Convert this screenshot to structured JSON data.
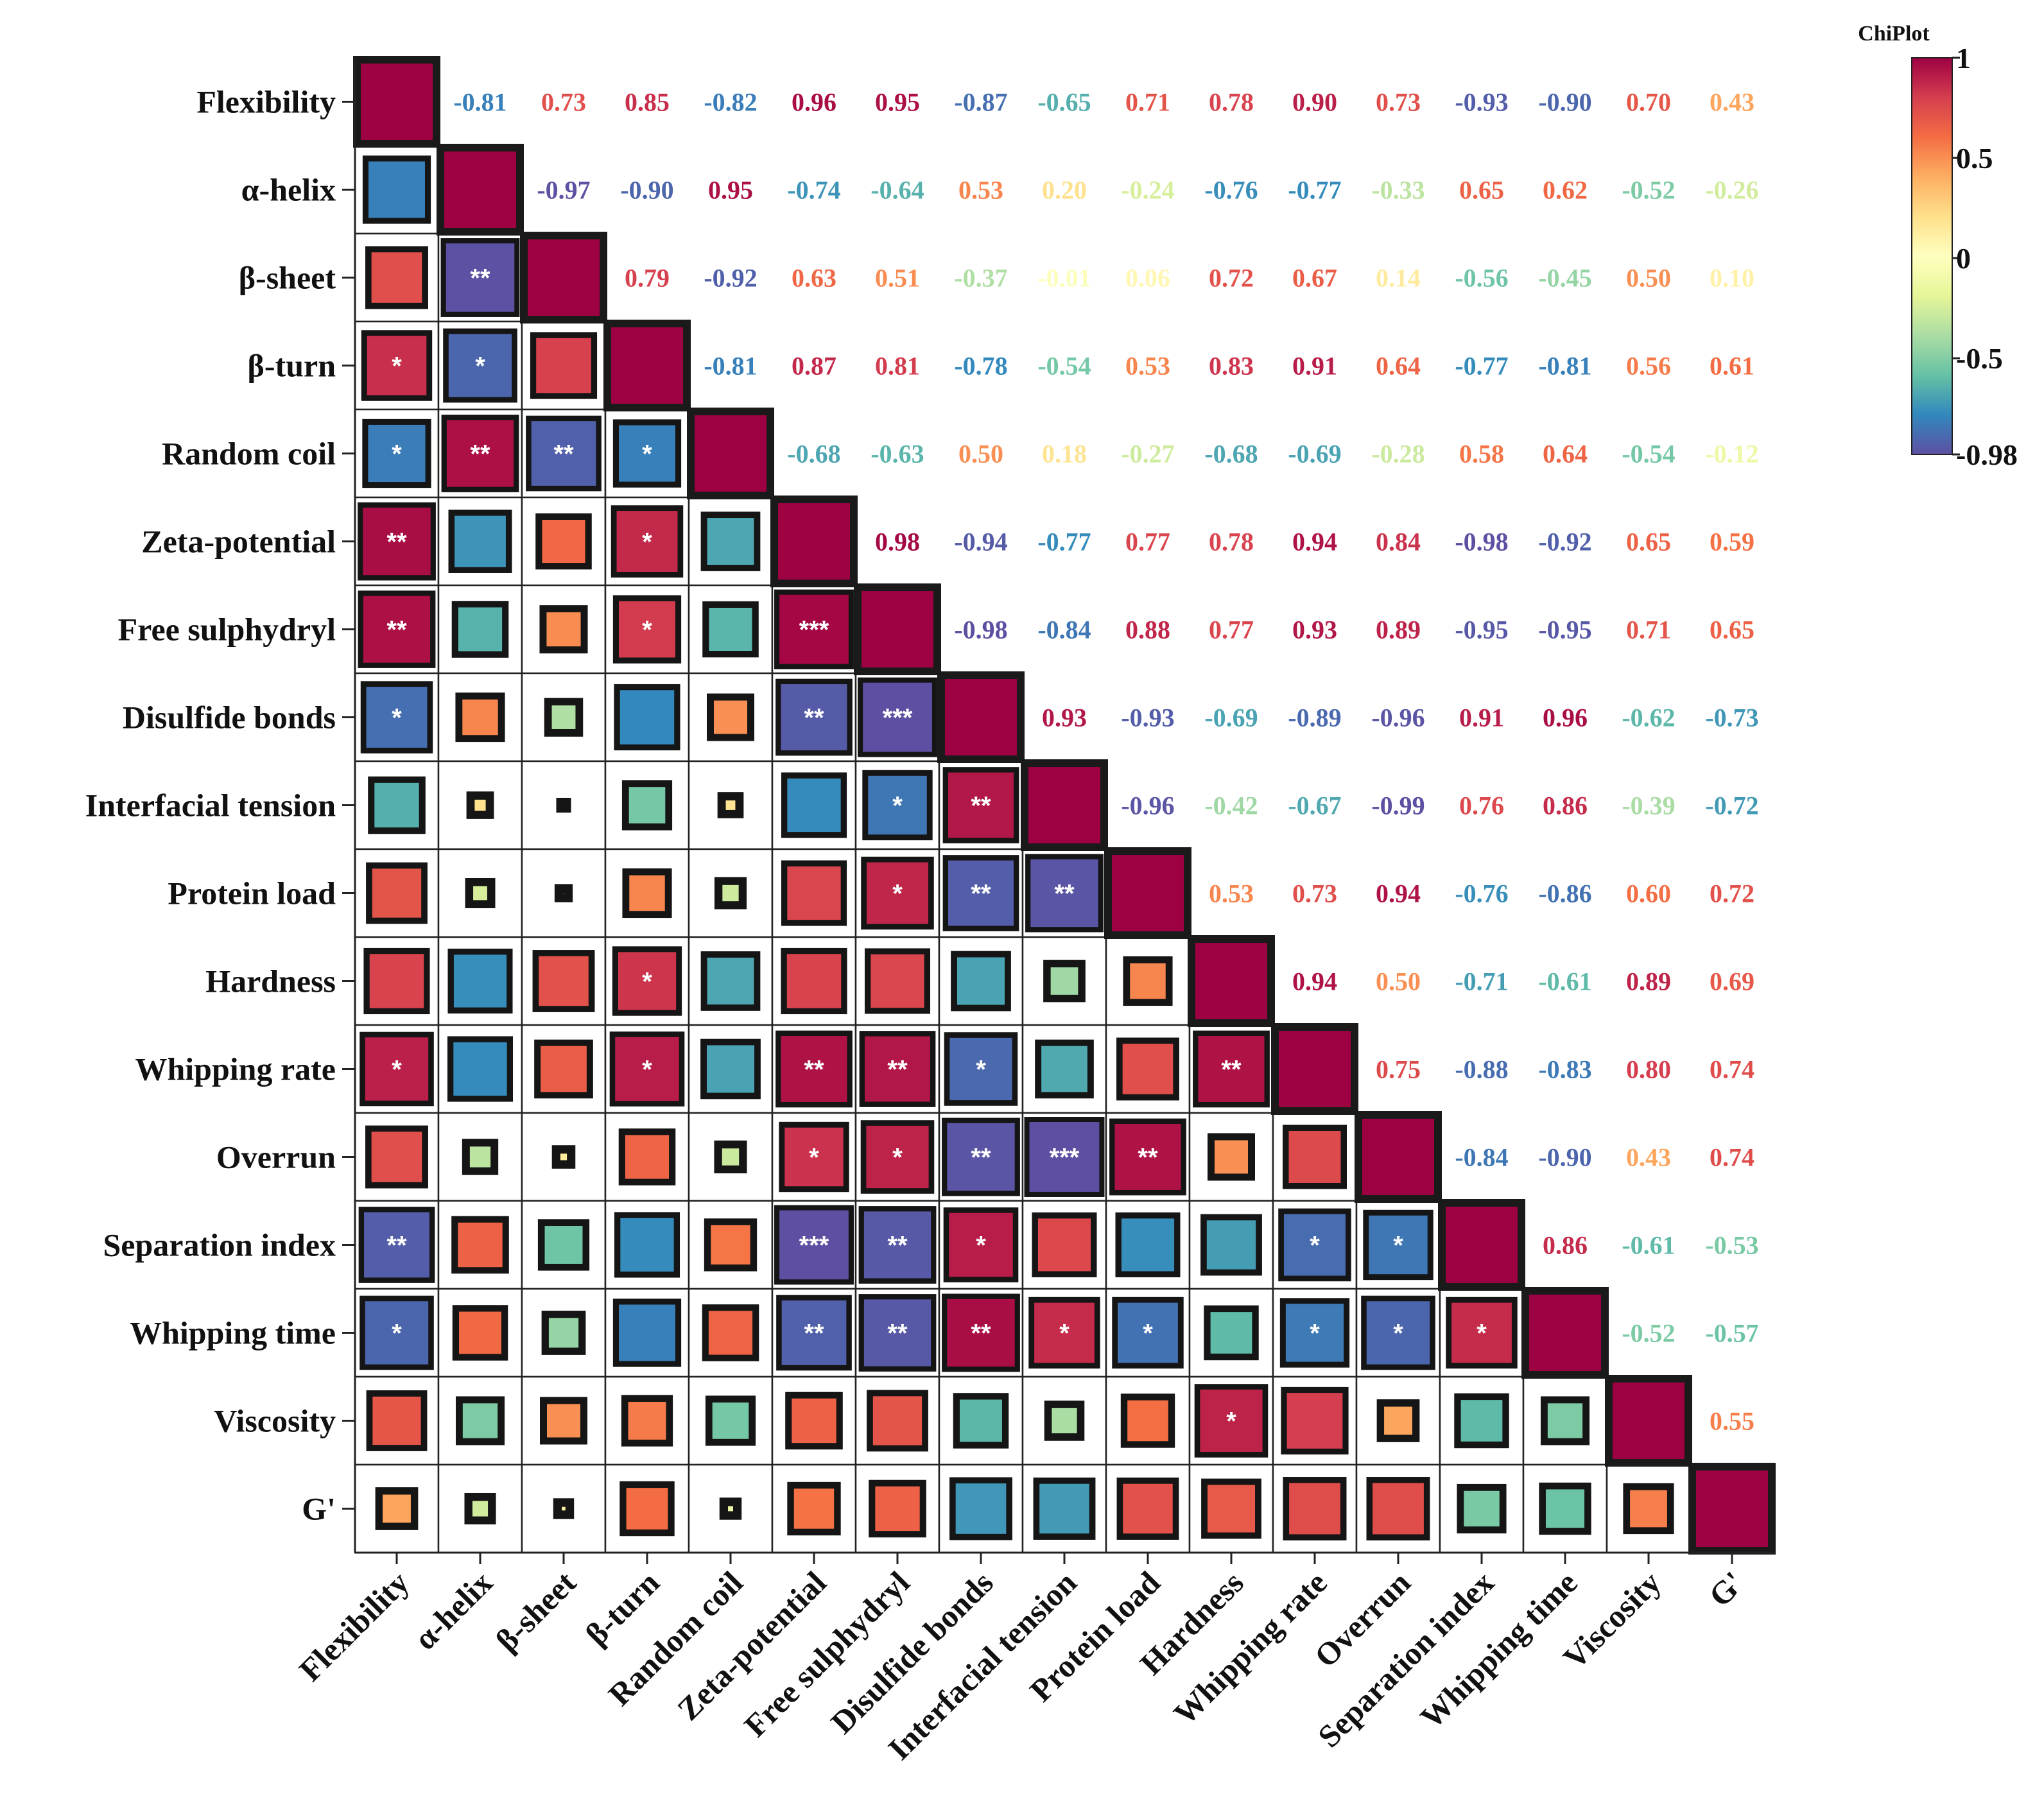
{
  "chart_data": {
    "type": "heatmap",
    "subtype": "correlation-matrix",
    "title": "ChiPlot",
    "variables": [
      "Flexibility",
      "α-helix",
      "β-sheet",
      "β-turn",
      "Random coil",
      "Zeta-potential",
      "Free sulphydryl",
      "Disulfide bonds",
      "Interfacial tension",
      "Protein load",
      "Hardness",
      "Whipping rate",
      "Overrun",
      "Separation index",
      "Whipping time",
      "Viscosity",
      "G'"
    ],
    "correlation_labels": [
      [
        "1",
        "-0.81",
        "0.73",
        "0.85",
        "-0.82",
        "0.96",
        "0.95",
        "-0.87",
        "-0.65",
        "0.71",
        "0.78",
        "0.90",
        "0.73",
        "-0.93",
        "-0.90",
        "0.70",
        "0.43"
      ],
      [
        "-0.81",
        "1",
        "-0.97",
        "-0.90",
        "0.95",
        "-0.74",
        "-0.64",
        "0.53",
        "0.20",
        "-0.24",
        "-0.76",
        "-0.77",
        "-0.33",
        "0.65",
        "0.62",
        "-0.52",
        "-0.26"
      ],
      [
        "0.73",
        "-0.97",
        "1",
        "0.79",
        "-0.92",
        "0.63",
        "0.51",
        "-0.37",
        "-0.01",
        "0.06",
        "0.72",
        "0.67",
        "0.14",
        "-0.56",
        "-0.45",
        "0.50",
        "0.10"
      ],
      [
        "0.85",
        "-0.90",
        "0.79",
        "1",
        "-0.81",
        "0.87",
        "0.81",
        "-0.78",
        "-0.54",
        "0.53",
        "0.83",
        "0.91",
        "0.64",
        "-0.77",
        "-0.81",
        "0.56",
        "0.61"
      ],
      [
        "-0.82",
        "0.95",
        "-0.92",
        "-0.81",
        "1",
        "-0.68",
        "-0.63",
        "0.50",
        "0.18",
        "-0.27",
        "-0.68",
        "-0.69",
        "-0.28",
        "0.58",
        "0.64",
        "-0.54",
        "-0.12"
      ],
      [
        "0.96",
        "-0.74",
        "0.63",
        "0.87",
        "-0.68",
        "1",
        "0.98",
        "-0.94",
        "-0.77",
        "0.77",
        "0.78",
        "0.94",
        "0.84",
        "-0.98",
        "-0.92",
        "0.65",
        "0.59"
      ],
      [
        "0.95",
        "-0.64",
        "0.51",
        "0.81",
        "-0.63",
        "0.98",
        "1",
        "-0.98",
        "-0.84",
        "0.88",
        "0.77",
        "0.93",
        "0.89",
        "-0.95",
        "-0.95",
        "0.71",
        "0.65"
      ],
      [
        "-0.87",
        "0.53",
        "-0.37",
        "-0.78",
        "0.50",
        "-0.94",
        "-0.98",
        "1",
        "0.93",
        "-0.93",
        "-0.69",
        "-0.89",
        "-0.96",
        "0.91",
        "0.96",
        "-0.62",
        "-0.73"
      ],
      [
        "-0.65",
        "0.20",
        "-0.01",
        "-0.54",
        "0.18",
        "-0.77",
        "-0.84",
        "0.93",
        "1",
        "-0.96",
        "-0.42",
        "-0.67",
        "-0.99",
        "0.76",
        "0.86",
        "-0.39",
        "-0.72"
      ],
      [
        "0.71",
        "-0.24",
        "0.06",
        "0.53",
        "-0.27",
        "0.77",
        "0.88",
        "-0.93",
        "-0.96",
        "1",
        "0.53",
        "0.73",
        "0.94",
        "-0.76",
        "-0.86",
        "0.60",
        "0.72"
      ],
      [
        "0.78",
        "-0.76",
        "0.72",
        "0.83",
        "-0.68",
        "0.78",
        "0.77",
        "-0.69",
        "-0.42",
        "0.53",
        "1",
        "0.94",
        "0.50",
        "-0.71",
        "-0.61",
        "0.89",
        "0.69"
      ],
      [
        "0.90",
        "-0.77",
        "0.67",
        "0.91",
        "-0.69",
        "0.94",
        "0.93",
        "-0.89",
        "-0.67",
        "0.73",
        "0.94",
        "1",
        "0.75",
        "-0.88",
        "-0.83",
        "0.80",
        "0.74"
      ],
      [
        "0.73",
        "-0.33",
        "0.14",
        "0.64",
        "-0.28",
        "0.84",
        "0.89",
        "-0.96",
        "-0.99",
        "0.94",
        "0.50",
        "0.75",
        "1",
        "-0.84",
        "-0.90",
        "0.43",
        "0.74"
      ],
      [
        "-0.93",
        "0.65",
        "-0.56",
        "-0.77",
        "0.58",
        "-0.98",
        "-0.95",
        "0.91",
        "0.76",
        "-0.76",
        "-0.71",
        "-0.88",
        "-0.84",
        "1",
        "0.86",
        "-0.61",
        "-0.53"
      ],
      [
        "-0.90",
        "0.62",
        "-0.45",
        "-0.81",
        "0.64",
        "-0.92",
        "-0.95",
        "0.96",
        "0.86",
        "-0.86",
        "-0.61",
        "-0.83",
        "-0.90",
        "0.86",
        "1",
        "-0.52",
        "-0.57"
      ],
      [
        "0.70",
        "-0.52",
        "0.50",
        "0.56",
        "-0.54",
        "0.65",
        "0.71",
        "-0.62",
        "-0.39",
        "0.60",
        "0.89",
        "0.80",
        "0.43",
        "-0.61",
        "-0.52",
        "1",
        "0.55"
      ],
      [
        "0.43",
        "-0.26",
        "0.10",
        "0.61",
        "-0.12",
        "0.59",
        "0.65",
        "-0.73",
        "-0.72",
        "0.72",
        "0.69",
        "0.74",
        "0.74",
        "-0.53",
        "-0.57",
        "0.55",
        "1"
      ]
    ],
    "significance": [
      [
        "",
        "",
        "",
        "",
        "",
        "",
        "",
        "",
        "",
        "",
        "",
        "",
        "",
        "",
        "",
        "",
        ""
      ],
      [
        "",
        "",
        "",
        "",
        "",
        "",
        "",
        "",
        "",
        "",
        "",
        "",
        "",
        "",
        "",
        "",
        ""
      ],
      [
        "",
        "**",
        "",
        "",
        "",
        "",
        "",
        "",
        "",
        "",
        "",
        "",
        "",
        "",
        "",
        "",
        ""
      ],
      [
        "*",
        "*",
        "",
        "",
        "",
        "",
        "",
        "",
        "",
        "",
        "",
        "",
        "",
        "",
        "",
        "",
        ""
      ],
      [
        "*",
        "**",
        "**",
        "*",
        "",
        "",
        "",
        "",
        "",
        "",
        "",
        "",
        "",
        "",
        "",
        "",
        ""
      ],
      [
        "**",
        "",
        "",
        "*",
        "",
        "",
        "",
        "",
        "",
        "",
        "",
        "",
        "",
        "",
        "",
        "",
        ""
      ],
      [
        "**",
        "",
        "",
        "*",
        "",
        "***",
        "",
        "",
        "",
        "",
        "",
        "",
        "",
        "",
        "",
        "",
        ""
      ],
      [
        "*",
        "",
        "",
        "",
        "",
        "**",
        "***",
        "",
        "",
        "",
        "",
        "",
        "",
        "",
        "",
        "",
        ""
      ],
      [
        "",
        "",
        "",
        "",
        "",
        "",
        "*",
        "**",
        "",
        "",
        "",
        "",
        "",
        "",
        "",
        "",
        ""
      ],
      [
        "",
        "",
        "",
        "",
        "",
        "",
        "*",
        "**",
        "**",
        "",
        "",
        "",
        "",
        "",
        "",
        "",
        ""
      ],
      [
        "",
        "",
        "",
        "*",
        "",
        "",
        "",
        "",
        "",
        "",
        "",
        "",
        "",
        "",
        "",
        "",
        ""
      ],
      [
        "*",
        "",
        "",
        "*",
        "",
        "**",
        "**",
        "*",
        "",
        "",
        "**",
        "",
        "",
        "",
        "",
        "",
        ""
      ],
      [
        "",
        "",
        "",
        "",
        "",
        "*",
        "*",
        "**",
        "***",
        "**",
        "",
        "",
        "",
        "",
        "",
        "",
        ""
      ],
      [
        "**",
        "",
        "",
        "",
        "",
        "***",
        "**",
        "*",
        "",
        "",
        "",
        "*",
        "*",
        "",
        "",
        "",
        ""
      ],
      [
        "*",
        "",
        "",
        "",
        "",
        "**",
        "**",
        "**",
        "*",
        "*",
        "",
        "*",
        "*",
        "*",
        "",
        "",
        ""
      ],
      [
        "",
        "",
        "",
        "",
        "",
        "",
        "",
        "",
        "",
        "",
        "*",
        "",
        "",
        "",
        "",
        "",
        ""
      ],
      [
        "",
        "",
        "",
        "",
        "",
        "",
        "",
        "",
        "",
        "",
        "",
        "",
        "",
        "",
        "",
        "",
        ""
      ]
    ],
    "colorbar": {
      "title": "ChiPlot",
      "tick_labels": [
        "1",
        "0.5",
        "0",
        "-0.5",
        "-0.98"
      ],
      "min": -0.98,
      "max": 1,
      "colormap": "Spectral_r",
      "colors": [
        "#5e4fa2",
        "#3288bd",
        "#66c2a5",
        "#abdda4",
        "#e6f598",
        "#ffffbf",
        "#fee08b",
        "#fdae61",
        "#f46d43",
        "#d53e4f",
        "#9e0142"
      ]
    },
    "upper_triangle": "coefficient text",
    "lower_triangle": "squares sized by |r|, stars = significance",
    "xlabel": "",
    "ylabel": ""
  }
}
